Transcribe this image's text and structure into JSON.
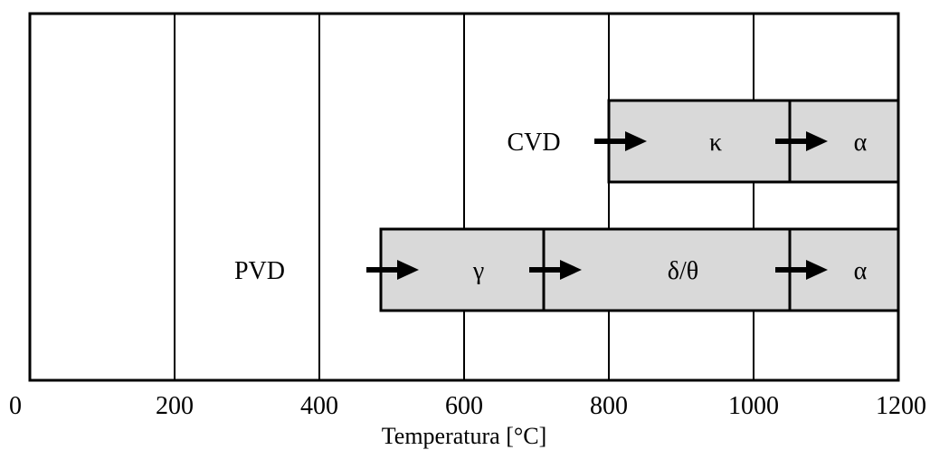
{
  "chart_data": {
    "type": "diagram",
    "xlabel": "Temperatura [°C]",
    "xlim": [
      0,
      1200
    ],
    "ticks": [
      "0",
      "200",
      "400",
      "600",
      "800",
      "1000",
      "1200"
    ],
    "tick_values": [
      0,
      200,
      400,
      600,
      800,
      1000,
      1200
    ],
    "grid": true,
    "rows": [
      {
        "name": "CVD",
        "phases": [
          {
            "label": "κ",
            "start": 800,
            "end": 1050
          },
          {
            "label": "α",
            "start": 1050,
            "end": 1200
          }
        ]
      },
      {
        "name": "PVD",
        "phases": [
          {
            "label": "γ",
            "start": 485,
            "end": 710
          },
          {
            "label": "δ/θ",
            "start": 710,
            "end": 1050
          },
          {
            "label": "α",
            "start": 1050,
            "end": 1200
          }
        ]
      }
    ],
    "colors": {
      "box_fill": "#d9d9d9",
      "line": "#000000"
    }
  }
}
